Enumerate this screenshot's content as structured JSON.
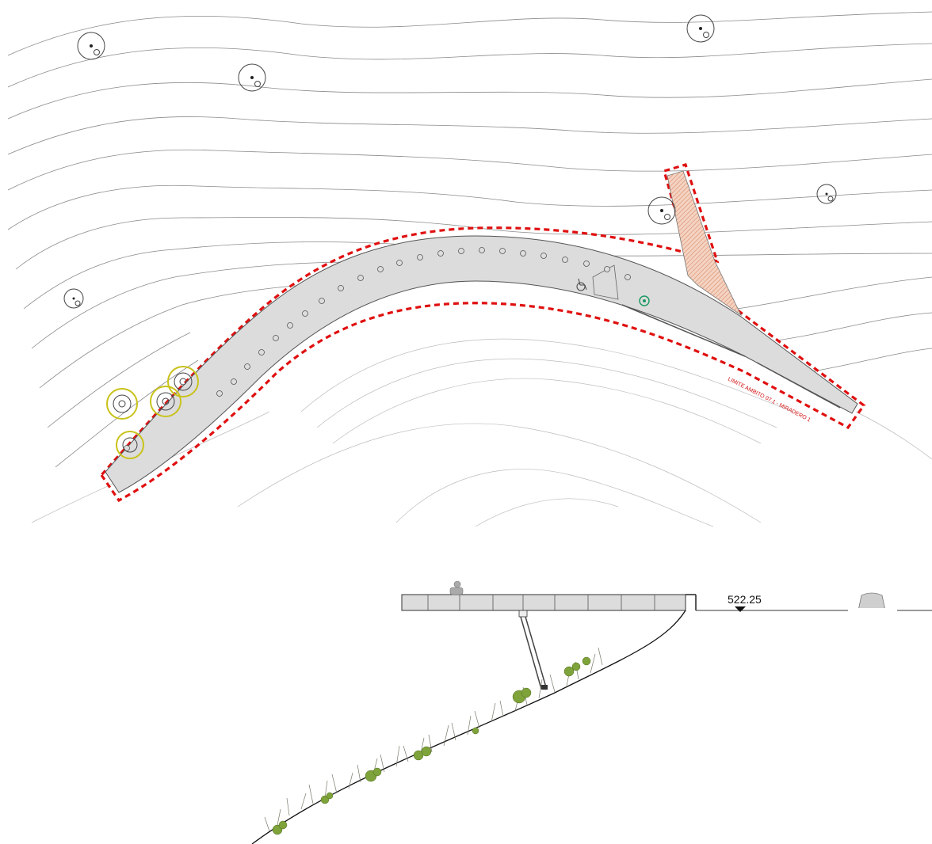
{
  "plan": {
    "boundary_label": "LIMITE AMBITO 07.1 - MIRADERO 1"
  },
  "section": {
    "elevation_label": "522.25"
  },
  "colors": {
    "boundary": "#e01010",
    "deck": "#dcdcdc",
    "ramp_hatch": "#e8a888",
    "vegetation": "#7ea33a",
    "tree_highlight": "#c9c21a"
  },
  "icons": [
    "wheelchair-icon",
    "tree-symbol-icon",
    "elevation-marker-icon",
    "vehicle-icon",
    "person-icon"
  ]
}
